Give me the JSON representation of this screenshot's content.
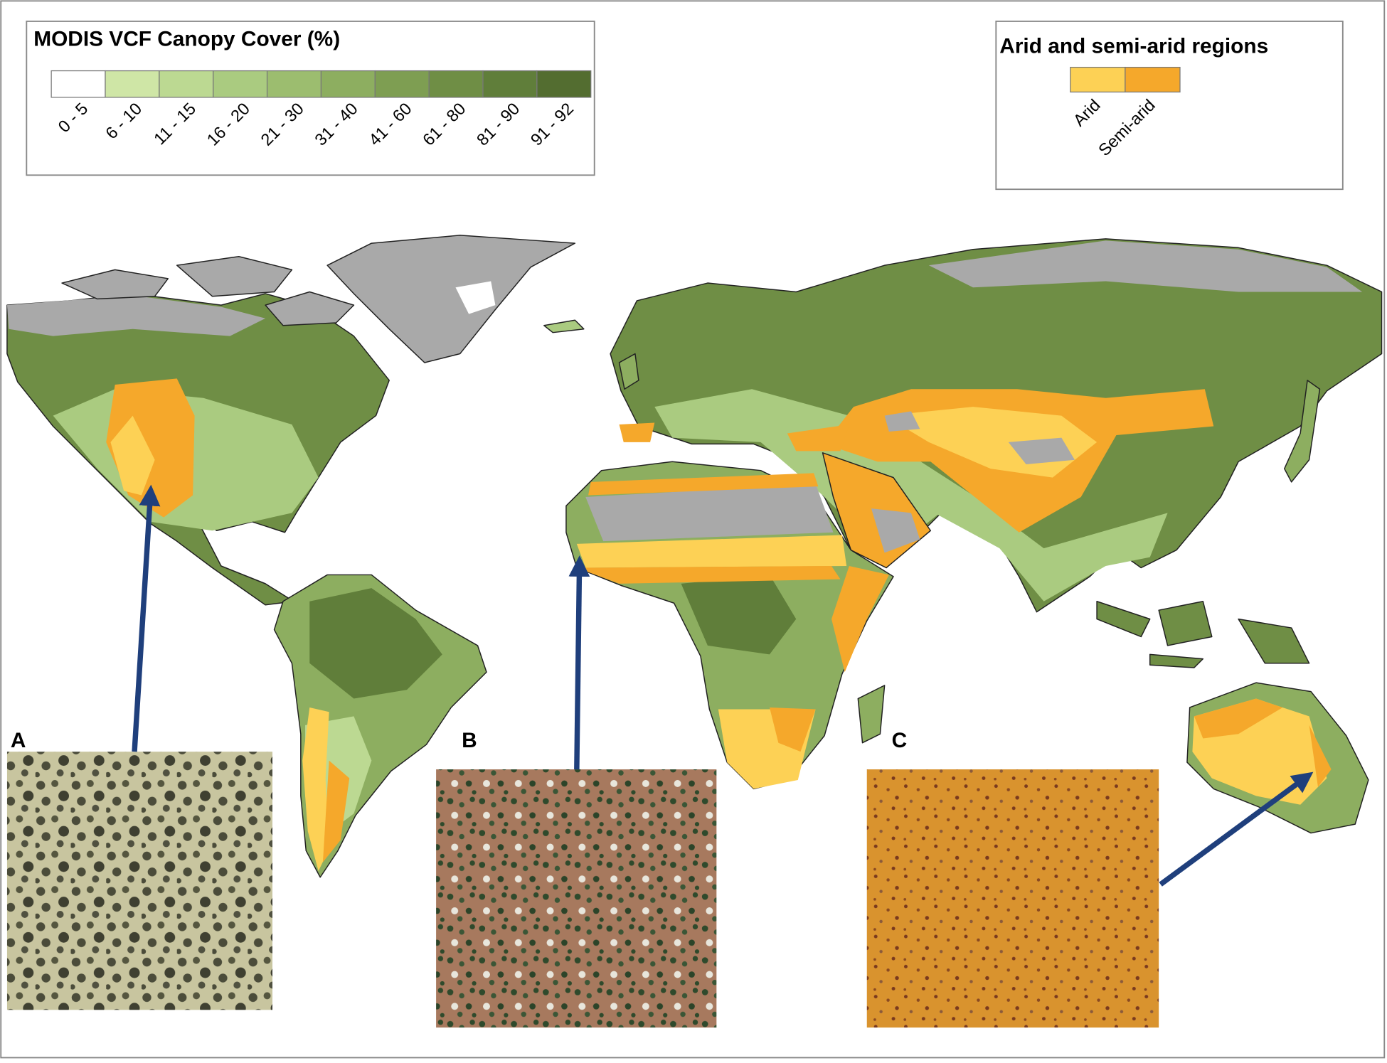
{
  "legend_canopy": {
    "title": "MODIS VCF Canopy Cover (%)",
    "classes": [
      {
        "label": "0 - 5",
        "color": "#ffffff"
      },
      {
        "label": "6 - 10",
        "color": "#cfe6a6"
      },
      {
        "label": "11 - 15",
        "color": "#bcd992"
      },
      {
        "label": "16 - 20",
        "color": "#aacb80"
      },
      {
        "label": "21 - 30",
        "color": "#9cbd6f"
      },
      {
        "label": "31 - 40",
        "color": "#8dae60"
      },
      {
        "label": "41 - 60",
        "color": "#7e9e52"
      },
      {
        "label": "61 - 80",
        "color": "#6f8e45"
      },
      {
        "label": "81 - 90",
        "color": "#607e3a"
      },
      {
        "label": "91 - 92",
        "color": "#536d30"
      }
    ]
  },
  "legend_arid": {
    "title": "Arid and semi-arid regions",
    "classes": [
      {
        "label": "Arid",
        "color": "#fdd155"
      },
      {
        "label": "Semi-arid",
        "color": "#f5a82b"
      }
    ]
  },
  "panels": [
    {
      "label": "A"
    },
    {
      "label": "B"
    },
    {
      "label": "C"
    }
  ]
}
